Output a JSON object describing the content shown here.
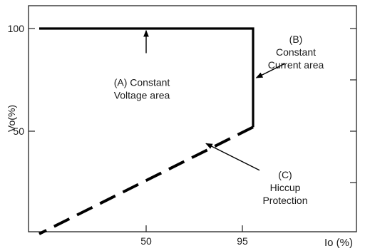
{
  "chart_data": {
    "type": "line",
    "xlabel": "Io (%)",
    "ylabel": "Vo(%)",
    "x_ticks": [
      {
        "value": 50,
        "label": "50"
      },
      {
        "value": 95,
        "label": "95"
      }
    ],
    "y_ticks": [
      {
        "value": 50,
        "label": "50"
      },
      {
        "value": 100,
        "label": "100"
      }
    ],
    "xlim": [
      0,
      105
    ],
    "ylim": [
      0,
      105
    ],
    "grid": false,
    "series": [
      {
        "style": "solid",
        "color": "#000000",
        "points": [
          [
            0,
            100
          ],
          [
            100,
            100
          ],
          [
            100,
            52
          ]
        ]
      },
      {
        "style": "dashed",
        "color": "#000000",
        "points": [
          [
            100,
            52
          ],
          [
            0,
            0
          ]
        ]
      }
    ],
    "annotations": [
      {
        "lines": [
          "(A)  Constant",
          "Voltage area"
        ],
        "text_at": [
          48,
          72
        ],
        "arrow_from": [
          50,
          88
        ],
        "arrow_to": [
          50,
          99
        ]
      },
      {
        "lines": [
          "(B)",
          "Constant",
          "Current area"
        ],
        "text_at": [
          120,
          93
        ],
        "arrow_from": [
          115,
          83
        ],
        "arrow_to": [
          101.5,
          76
        ]
      },
      {
        "lines": [
          "(C)",
          "Hiccup",
          "Protection"
        ],
        "text_at": [
          115,
          27
        ],
        "arrow_from": [
          103,
          31
        ],
        "arrow_to": [
          78,
          44
        ]
      }
    ]
  }
}
